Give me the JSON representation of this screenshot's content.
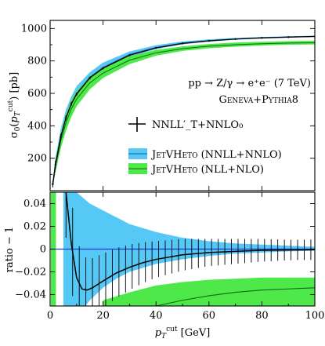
{
  "chart_data": [
    {
      "type": "line",
      "ylabel": "σ₀(p_T^cut) [pb]",
      "xlim": [
        0,
        100
      ],
      "ylim": [
        0,
        1050
      ],
      "yticks": [
        200,
        400,
        600,
        800,
        1000
      ],
      "annotation": {
        "process": "pp → Z/γ → e⁺e⁻ (7 TeV)",
        "generator": "Geneva+Pythia8"
      },
      "legend": {
        "placement": "right-center",
        "entries": [
          {
            "label": "NNLL′_T+NNLO₀",
            "style": "errorbars",
            "color": "#000000"
          },
          {
            "label": "JetVHeto (NNLL+NNLO)",
            "style": "band",
            "color": "#56c8f5"
          },
          {
            "label": "JetVHeto (NLL+NLO)",
            "style": "band",
            "color": "#4ee84a"
          }
        ]
      },
      "series": [
        {
          "label_ref": 1,
          "color": "#56c8f5",
          "x": [
            1,
            2,
            4,
            6,
            8,
            10,
            15,
            20,
            30,
            40,
            50,
            60,
            70,
            80,
            90,
            100
          ],
          "y": [
            40,
            160,
            330,
            450,
            535,
            600,
            700,
            760,
            840,
            883,
            910,
            925,
            935,
            943,
            948,
            951
          ],
          "lo": [
            25,
            125,
            285,
            405,
            495,
            560,
            670,
            740,
            825,
            873,
            902,
            919,
            931,
            939,
            945,
            949
          ],
          "hi": [
            60,
            200,
            380,
            500,
            580,
            645,
            730,
            790,
            858,
            897,
            920,
            933,
            942,
            948,
            952,
            955
          ]
        },
        {
          "label_ref": 2,
          "color": "#4ee84a",
          "x": [
            1,
            2,
            4,
            6,
            8,
            10,
            15,
            20,
            30,
            40,
            50,
            60,
            70,
            80,
            90,
            100
          ],
          "y": [
            35,
            145,
            305,
            420,
            505,
            565,
            665,
            725,
            805,
            850,
            876,
            891,
            900,
            906,
            910,
            912
          ],
          "lo": [
            20,
            110,
            260,
            370,
            455,
            520,
            625,
            695,
            780,
            832,
            862,
            878,
            888,
            895,
            900,
            902
          ],
          "hi": [
            55,
            180,
            350,
            470,
            555,
            615,
            705,
            760,
            830,
            868,
            890,
            904,
            913,
            918,
            922,
            924
          ]
        },
        {
          "label_ref": 0,
          "color": "#000000",
          "x": [
            1,
            2,
            4,
            6,
            8,
            10,
            15,
            20,
            30,
            40,
            50,
            60,
            70,
            80,
            90,
            100
          ],
          "y": [
            40,
            160,
            330,
            450,
            535,
            595,
            695,
            755,
            835,
            880,
            908,
            924,
            935,
            942,
            947,
            951
          ],
          "err": [
            20,
            25,
            20,
            15,
            12,
            10,
            8,
            7,
            6,
            6,
            5,
            5,
            5,
            5,
            5,
            5
          ]
        }
      ]
    },
    {
      "type": "line",
      "xlabel": "p_T^cut [GeV]",
      "ylabel": "ratio − 1",
      "xlim": [
        0,
        100
      ],
      "ylim": [
        -0.05,
        0.05
      ],
      "xticks": [
        0,
        20,
        40,
        60,
        80,
        100
      ],
      "yticks": [
        -0.04,
        -0.02,
        0,
        0.02,
        0.04
      ],
      "ytick_labels": [
        "−0.04",
        "−0.02",
        "0",
        "0.02",
        "0.04"
      ],
      "series": [
        {
          "name": "JetVHeto (NNLL+NNLO) band",
          "color": "#56c8f5",
          "x": [
            5,
            10,
            15,
            20,
            25,
            30,
            40,
            50,
            60,
            70,
            80,
            90,
            100
          ],
          "lo": [
            -0.06,
            -0.06,
            -0.045,
            -0.034,
            -0.026,
            -0.02,
            -0.013,
            -0.009,
            -0.006,
            -0.004,
            -0.003,
            -0.002,
            -0.0015
          ],
          "hi": [
            0.06,
            0.05,
            0.04,
            0.034,
            0.028,
            0.022,
            0.015,
            0.01,
            0.007,
            0.005,
            0.004,
            0.003,
            0.002
          ]
        },
        {
          "name": "JetVHeto (NLL+NLO) band",
          "color": "#4ee84a",
          "x": [
            20,
            30,
            40,
            50,
            60,
            70,
            80,
            90,
            100
          ],
          "lo": [
            -0.06,
            -0.06,
            -0.06,
            -0.06,
            -0.06,
            -0.06,
            -0.06,
            -0.06,
            -0.06
          ],
          "hi": [
            -0.045,
            -0.038,
            -0.032,
            -0.029,
            -0.027,
            -0.026,
            -0.025,
            -0.025,
            -0.025
          ]
        },
        {
          "name": "JetVHeto (NLL+NLO) central",
          "color": "#0a6e0a",
          "x": [
            40,
            50,
            60,
            70,
            80,
            90,
            100
          ],
          "y": [
            -0.05,
            -0.045,
            -0.041,
            -0.038,
            -0.036,
            -0.035,
            -0.034
          ]
        },
        {
          "name": "NNLL′_T+NNLO₀ ratio",
          "color": "#000000",
          "x": [
            6,
            8,
            10,
            12,
            14,
            16,
            20,
            25,
            30,
            35,
            40,
            50,
            60,
            70,
            80,
            90,
            100
          ],
          "y": [
            0.05,
            0.005,
            -0.025,
            -0.035,
            -0.036,
            -0.034,
            -0.028,
            -0.021,
            -0.016,
            -0.012,
            -0.009,
            -0.005,
            -0.003,
            -0.002,
            -0.001,
            -0.0008,
            -0.0005
          ],
          "err": [
            0.04,
            0.04,
            0.035,
            0.03,
            0.028,
            0.026,
            0.024,
            0.022,
            0.02,
            0.018,
            0.016,
            0.014,
            0.012,
            0.011,
            0.01,
            0.009,
            0.009
          ]
        }
      ]
    }
  ]
}
